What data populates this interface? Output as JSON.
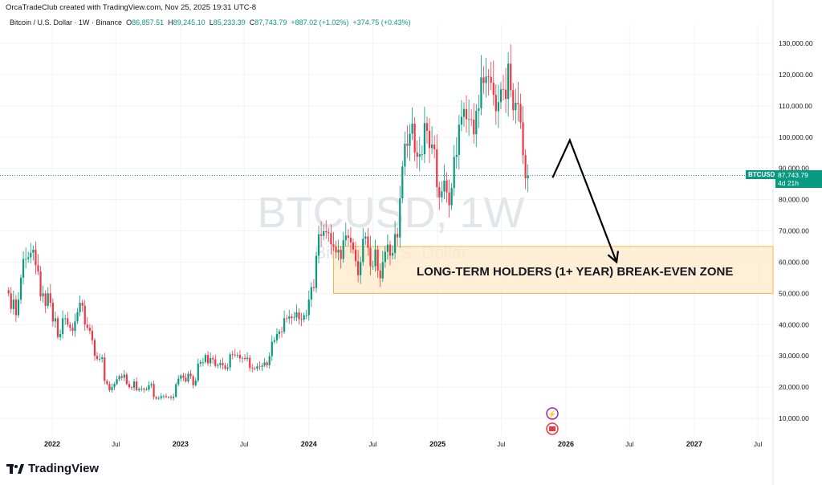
{
  "header": {
    "credit": "OrcaTradeClub created with TradingView.com, Nov 25, 2025 19:31 UTC-8",
    "symbol": "Bitcoin / U.S. Dollar · 1W · Binance",
    "o_label": "O",
    "o": "86,857.51",
    "h_label": "H",
    "h": "89,245.10",
    "l_label": "L",
    "l": "85,233.39",
    "c_label": "C",
    "c": "87,743.79",
    "change": "+887.02 (+1.02%)",
    "change2": "+374.75 (+0.43%)"
  },
  "price_tag": {
    "ticker": "BTCUSD",
    "price": "87,743.79",
    "countdown": "4d 21h",
    "value": 87743.79
  },
  "watermark": {
    "line1": "BTCUSD, 1W",
    "line2": "Bitcoin / U.S. Dollar"
  },
  "logo": "TradingView",
  "colors": {
    "up": "#089981",
    "down": "#f23645",
    "zone": "#fde9c8",
    "zone_border": "#f5a623",
    "arrow": "#000000"
  },
  "chart_data": {
    "type": "candlestick",
    "interval": "1W",
    "first_week": "2021-08-30",
    "closes": [
      50000,
      45000,
      48000,
      43000,
      48000,
      55000,
      61000,
      61000,
      61500,
      63000,
      64000,
      59000,
      57000,
      49000,
      50000,
      46000,
      50000,
      47000,
      41000,
      42000,
      36000,
      37000,
      42000,
      42000,
      40000,
      39000,
      38000,
      41000,
      44000,
      47000,
      46000,
      40000,
      39000,
      38000,
      35000,
      30000,
      29000,
      29000,
      29500,
      22000,
      21000,
      19000,
      20000,
      21000,
      22500,
      23500,
      23000,
      24000,
      21000,
      20000,
      19800,
      21800,
      19000,
      19400,
      19500,
      19200,
      19200,
      20600,
      21000,
      16800,
      16300,
      16500,
      17100,
      17100,
      16800,
      16800,
      16500,
      16900,
      20900,
      22700,
      23700,
      23000,
      21800,
      24300,
      23500,
      20600,
      22100,
      27500,
      28000,
      28000,
      30300,
      27600,
      29300,
      28900,
      26800,
      27100,
      27700,
      27000,
      25900,
      26300,
      30500,
      30400,
      30200,
      30300,
      29200,
      29300,
      29000,
      29400,
      26100,
      26000,
      25900,
      26600,
      26500,
      26900,
      27900,
      27000,
      29900,
      34500,
      35000,
      37000,
      37800,
      37700,
      42000,
      41900,
      42600,
      42100,
      42300,
      43900,
      41700,
      41600,
      43000,
      43000,
      48000,
      52000,
      51700,
      62000,
      68900,
      68400,
      69900,
      69600,
      69300,
      65700,
      64900,
      63100,
      63900,
      61000,
      67000,
      68500,
      67800,
      66300,
      64000,
      60300,
      55800,
      60000,
      67500,
      68200,
      64600,
      58700,
      58700,
      64000,
      57300,
      54800,
      60000,
      63300,
      65600,
      62100,
      62900,
      69000,
      67900,
      80400,
      90600,
      97900,
      97200,
      101100,
      104300,
      95100,
      93700,
      94500,
      94500,
      104500,
      102000,
      96500,
      97600,
      96100,
      84000,
      80700,
      82600,
      86100,
      82300,
      78200,
      83700,
      93700,
      94300,
      104000,
      106500,
      109000,
      105700,
      105700,
      105600,
      100900,
      108400,
      109200,
      119100,
      117300,
      119400,
      119300,
      117400,
      113500,
      108300,
      111200,
      115300,
      115200,
      112200,
      123500,
      115000,
      108600,
      111000,
      110600,
      104700,
      94200,
      86800,
      87743.79
    ],
    "y_ticks": [
      10000,
      20000,
      30000,
      40000,
      50000,
      60000,
      70000,
      80000,
      90000,
      100000,
      110000,
      120000,
      130000
    ],
    "y_tick_labels": [
      "10,000.00",
      "20,000.00",
      "30,000.00",
      "40,000.00",
      "50,000.00",
      "60,000.00",
      "70,000.00",
      "80,000.00",
      "90,000.00",
      "100,000.00",
      "110,000.00",
      "120,000.00",
      "130,000.00"
    ],
    "x_ticks": [
      {
        "date": "2022-01-01",
        "label": "2022"
      },
      {
        "date": "2022-07-01",
        "label": "Jul"
      },
      {
        "date": "2023-01-01",
        "label": "2023"
      },
      {
        "date": "2023-07-01",
        "label": "Jul"
      },
      {
        "date": "2024-01-01",
        "label": "2024"
      },
      {
        "date": "2024-07-01",
        "label": "Jul"
      },
      {
        "date": "2025-01-01",
        "label": "2025"
      },
      {
        "date": "2025-07-01",
        "label": "Jul"
      },
      {
        "date": "2026-01-01",
        "label": "2026"
      },
      {
        "date": "2026-07-01",
        "label": "Jul"
      },
      {
        "date": "2027-01-01",
        "label": "2027"
      },
      {
        "date": "2027-07-01",
        "label": "Jul"
      }
    ],
    "zone": {
      "from_date": "2024-03-11",
      "low": 50000,
      "high": 65000,
      "label": "LONG-TERM HOLDERS (1+ YEAR) BREAK-EVEN ZONE"
    },
    "arrow": [
      {
        "date": "2025-11-24",
        "price": 87000
      },
      {
        "date": "2026-01-12",
        "price": 99000
      },
      {
        "date": "2026-05-25",
        "price": 60000
      }
    ],
    "grid": true
  }
}
